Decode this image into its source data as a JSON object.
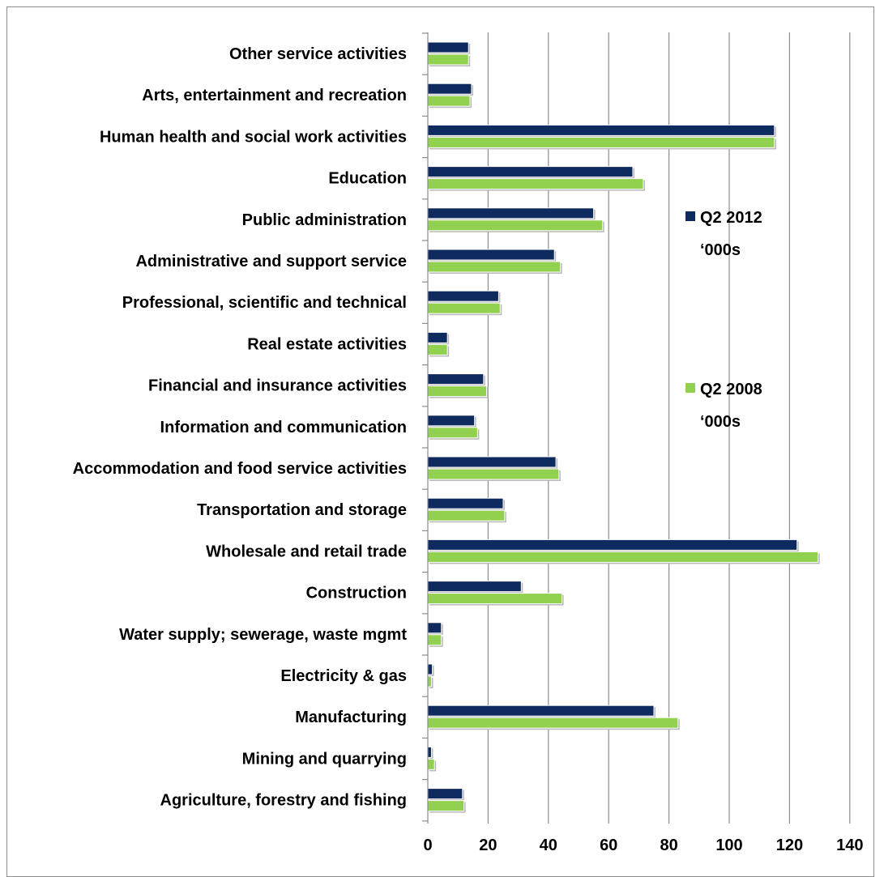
{
  "chart_data": {
    "type": "bar",
    "orientation": "horizontal",
    "title": "",
    "xlabel": "",
    "ylabel": "",
    "xlim": [
      0,
      140
    ],
    "x_ticks": [
      0,
      20,
      40,
      60,
      80,
      100,
      120,
      140
    ],
    "grid": "vertical",
    "legend_placement": "right",
    "categories": [
      "Other service activities",
      "Arts, entertainment and recreation",
      "Human health and social work activities",
      "Education",
      "Public administration",
      "Administrative and support service",
      "Professional, scientific and technical",
      "Real estate activities",
      "Financial and insurance activities",
      "Information and communication",
      "Accommodation and food service activities",
      "Transportation and storage",
      "Wholesale and retail trade",
      "Construction",
      "Water supply; sewerage, waste mgmt",
      "Electricity & gas",
      "Manufacturing",
      "Mining and quarrying",
      "Agriculture, forestry and fishing"
    ],
    "series": [
      {
        "name": "Q2 2012 ‘000s",
        "legend_lines": [
          "Q2 2012",
          "‘000s"
        ],
        "color": "#0f2a5e",
        "values": [
          13.5,
          14.5,
          115,
          68,
          55,
          42,
          23.5,
          6.5,
          18.5,
          15.5,
          42.5,
          25,
          122.5,
          31,
          4.5,
          1.5,
          75,
          1.2,
          11.5
        ]
      },
      {
        "name": "Q2 2008 ‘000s",
        "legend_lines": [
          "Q2 2008",
          "‘000s"
        ],
        "color": "#92d050",
        "values": [
          13.5,
          14,
          115,
          71.5,
          58,
          44,
          24,
          6.5,
          19.5,
          16.5,
          43.5,
          25.5,
          129.5,
          44.5,
          4.5,
          1.2,
          83,
          2.2,
          12
        ]
      }
    ]
  }
}
